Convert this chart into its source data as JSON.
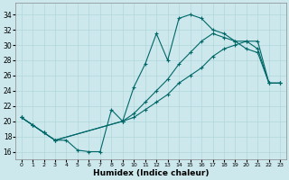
{
  "xlabel": "Humidex (Indice chaleur)",
  "bg_color": "#cce8ec",
  "grid_color": "#aad4d8",
  "line_color": "#006868",
  "xlim": [
    -0.5,
    23.5
  ],
  "ylim": [
    15.0,
    35.5
  ],
  "xticks": [
    0,
    1,
    2,
    3,
    4,
    5,
    6,
    7,
    8,
    9,
    10,
    11,
    12,
    13,
    14,
    15,
    16,
    17,
    18,
    19,
    20,
    21,
    22,
    23
  ],
  "yticks": [
    16,
    18,
    20,
    22,
    24,
    26,
    28,
    30,
    32,
    34
  ],
  "curve1_x": [
    0,
    1,
    2,
    3,
    4,
    5,
    6,
    7,
    8,
    9,
    10,
    11,
    12,
    13,
    14,
    15,
    16,
    17,
    18,
    19,
    20,
    21,
    22,
    23
  ],
  "curve1_y": [
    20.5,
    19.5,
    18.5,
    17.5,
    17.5,
    16.2,
    16.0,
    16.0,
    21.5,
    20.0,
    24.5,
    27.5,
    31.5,
    28.0,
    33.5,
    34.0,
    33.5,
    32.0,
    31.5,
    30.5,
    29.5,
    29.0,
    25.0,
    25.0
  ],
  "curve2_x": [
    0,
    1,
    2,
    3,
    9,
    10,
    11,
    12,
    13,
    14,
    15,
    16,
    17,
    18,
    19,
    20,
    21,
    22,
    23
  ],
  "curve2_y": [
    20.5,
    19.5,
    18.5,
    17.5,
    20.0,
    21.0,
    22.5,
    24.0,
    25.5,
    27.5,
    29.0,
    30.5,
    31.5,
    31.0,
    30.5,
    30.5,
    29.5,
    25.0,
    25.0
  ],
  "curve3_x": [
    0,
    1,
    2,
    3,
    9,
    10,
    11,
    12,
    13,
    14,
    15,
    16,
    17,
    18,
    19,
    20,
    21,
    22,
    23
  ],
  "curve3_y": [
    20.5,
    19.5,
    18.5,
    17.5,
    20.0,
    20.5,
    21.5,
    22.5,
    23.5,
    25.0,
    26.0,
    27.0,
    28.5,
    29.5,
    30.0,
    30.5,
    30.5,
    25.0,
    25.0
  ]
}
